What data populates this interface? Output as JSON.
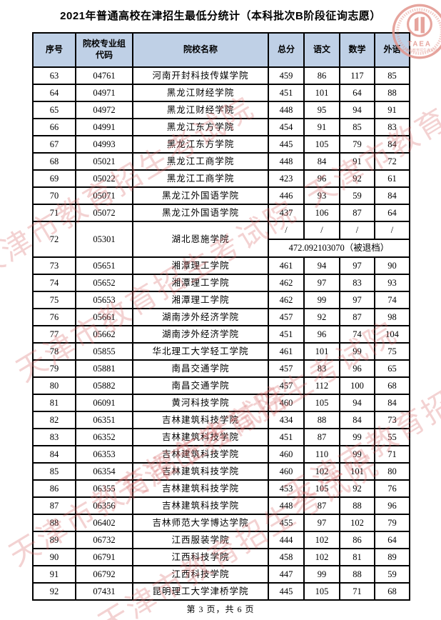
{
  "page": {
    "title": "2021年普通高校在津招生最低分统计（本科批次B阶段征询志愿）",
    "footer": "第 3 页，共 6 页"
  },
  "watermark": {
    "text": "天津市教育招生考试院"
  },
  "logo": {
    "acronym": "TAEA",
    "org_name": "天津市教育招生考试院"
  },
  "colors": {
    "header_bg": "#bfd0e6",
    "border": "#000000",
    "watermark_pink": "#d66a6a",
    "seal_pink": "#e2958d"
  },
  "table": {
    "headers": [
      "序号",
      "院校专业组\n代码",
      "院校名称",
      "总分",
      "语文",
      "数学",
      "外语"
    ],
    "rows": [
      {
        "no": "63",
        "code": "04761",
        "name": "河南开封科技传媒学院",
        "total": "459",
        "chinese": "86",
        "math": "117",
        "english": "85"
      },
      {
        "no": "64",
        "code": "04971",
        "name": "黑龙江财经学院",
        "total": "451",
        "chinese": "101",
        "math": "64",
        "english": "88"
      },
      {
        "no": "65",
        "code": "04972",
        "name": "黑龙江财经学院",
        "total": "448",
        "chinese": "95",
        "math": "94",
        "english": "91"
      },
      {
        "no": "66",
        "code": "04991",
        "name": "黑龙江东方学院",
        "total": "454",
        "chinese": "91",
        "math": "85",
        "english": "83"
      },
      {
        "no": "67",
        "code": "04993",
        "name": "黑龙江东方学院",
        "total": "445",
        "chinese": "105",
        "math": "79",
        "english": "84"
      },
      {
        "no": "68",
        "code": "05021",
        "name": "黑龙江工商学院",
        "total": "448",
        "chinese": "84",
        "math": "91",
        "english": "72"
      },
      {
        "no": "69",
        "code": "05022",
        "name": "黑龙江工商学院",
        "total": "423",
        "chinese": "96",
        "math": "92",
        "english": "61"
      },
      {
        "no": "70",
        "code": "05071",
        "name": "黑龙江外国语学院",
        "total": "446",
        "chinese": "93",
        "math": "59",
        "english": "84"
      },
      {
        "no": "71",
        "code": "05072",
        "name": "黑龙江外国语学院",
        "total": "437",
        "chinese": "106",
        "math": "87",
        "english": "64"
      },
      {
        "no": "72",
        "code": "05301",
        "name": "湖北恩施学院",
        "slashes": [
          "/",
          "/",
          "/",
          "/"
        ],
        "note": "472.092103070（被退档）"
      },
      {
        "no": "73",
        "code": "05651",
        "name": "湘潭理工学院",
        "total": "461",
        "chinese": "94",
        "math": "97",
        "english": "90"
      },
      {
        "no": "74",
        "code": "05652",
        "name": "湘潭理工学院",
        "total": "462",
        "chinese": "97",
        "math": "83",
        "english": "93"
      },
      {
        "no": "75",
        "code": "05653",
        "name": "湘潭理工学院",
        "total": "462",
        "chinese": "99",
        "math": "97",
        "english": "74"
      },
      {
        "no": "76",
        "code": "05661",
        "name": "湖南涉外经济学院",
        "total": "457",
        "chinese": "92",
        "math": "87",
        "english": "98"
      },
      {
        "no": "77",
        "code": "05662",
        "name": "湖南涉外经济学院",
        "total": "451",
        "chinese": "96",
        "math": "74",
        "english": "104"
      },
      {
        "no": "78",
        "code": "05855",
        "name": "华北理工大学轻工学院",
        "total": "461",
        "chinese": "101",
        "math": "99",
        "english": "75"
      },
      {
        "no": "79",
        "code": "05881",
        "name": "南昌交通学院",
        "total": "457",
        "chinese": "83",
        "math": "96",
        "english": "65"
      },
      {
        "no": "80",
        "code": "05882",
        "name": "南昌交通学院",
        "total": "457",
        "chinese": "112",
        "math": "100",
        "english": "68"
      },
      {
        "no": "81",
        "code": "06091",
        "name": "黄河科技学院",
        "total": "460",
        "chinese": "105",
        "math": "94",
        "english": "84"
      },
      {
        "no": "82",
        "code": "06351",
        "name": "吉林建筑科技学院",
        "total": "434",
        "chinese": "88",
        "math": "84",
        "english": "73"
      },
      {
        "no": "83",
        "code": "06352",
        "name": "吉林建筑科技学院",
        "total": "451",
        "chinese": "87",
        "math": "99",
        "english": "55"
      },
      {
        "no": "84",
        "code": "06353",
        "name": "吉林建筑科技学院",
        "total": "460",
        "chinese": "110",
        "math": "99",
        "english": "71"
      },
      {
        "no": "85",
        "code": "06354",
        "name": "吉林建筑科技学院",
        "total": "460",
        "chinese": "102",
        "math": "101",
        "english": "80"
      },
      {
        "no": "86",
        "code": "06355",
        "name": "吉林建筑科技学院",
        "total": "453",
        "chinese": "105",
        "math": "92",
        "english": "76"
      },
      {
        "no": "87",
        "code": "06356",
        "name": "吉林建筑科技学院",
        "total": "448",
        "chinese": "87",
        "math": "88",
        "english": "96"
      },
      {
        "no": "88",
        "code": "06402",
        "name": "吉林师范大学博达学院",
        "total": "455",
        "chinese": "97",
        "math": "102",
        "english": "79"
      },
      {
        "no": "89",
        "code": "06732",
        "name": "江西服装学院",
        "total": "444",
        "chinese": "102",
        "math": "86",
        "english": "64"
      },
      {
        "no": "90",
        "code": "06791",
        "name": "江西科技学院",
        "total": "458",
        "chinese": "102",
        "math": "81",
        "english": "89"
      },
      {
        "no": "91",
        "code": "06792",
        "name": "江西科技学院",
        "total": "447",
        "chinese": "99",
        "math": "88",
        "english": "59"
      },
      {
        "no": "92",
        "code": "07431",
        "name": "昆明理工大学津桥学院",
        "total": "445",
        "chinese": "105",
        "math": "71",
        "english": "68"
      }
    ]
  }
}
